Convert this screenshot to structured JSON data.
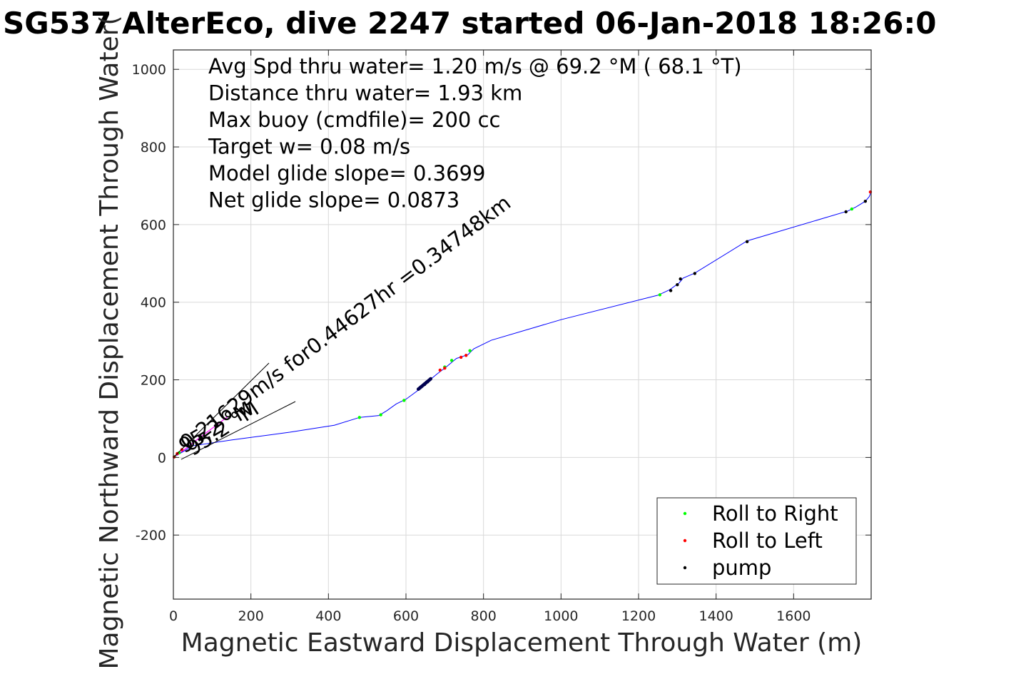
{
  "chart_data": {
    "type": "line",
    "title": "SG537 AlterEco, dive 2247 started 06-Jan-2018 18:26:0",
    "xlabel": "Magnetic Eastward Displacement Through Water (m)",
    "ylabel": "Magnetic Northward Displacement Through Water(",
    "xlim": [
      0,
      1800
    ],
    "ylim": [
      -365,
      1050
    ],
    "xticks": [
      0,
      200,
      400,
      600,
      800,
      1000,
      1200,
      1400,
      1600
    ],
    "yticks": [
      -200,
      0,
      200,
      400,
      600,
      800,
      1000
    ],
    "xtick_labels": [
      "0",
      "200",
      "400",
      "600",
      "800",
      "1000",
      "1200",
      "1400",
      "1600"
    ],
    "ytick_labels": [
      "-200",
      "0",
      "200",
      "400",
      "600",
      "800",
      "1000"
    ],
    "grid": true,
    "series": [
      {
        "name": "",
        "color": "#0000ff",
        "x": [
          0,
          50,
          150,
          300,
          415,
          480,
          530,
          550,
          575,
          600,
          630,
          650,
          680,
          700,
          730,
          760,
          775,
          820,
          1000,
          1250,
          1280,
          1305,
          1315,
          1345,
          1480,
          1740,
          1760,
          1785,
          1795,
          1800
        ],
        "y": [
          0,
          30,
          45,
          65,
          83,
          103,
          108,
          120,
          138,
          150,
          172,
          190,
          215,
          230,
          255,
          265,
          280,
          302,
          355,
          418,
          432,
          450,
          462,
          475,
          558,
          635,
          645,
          660,
          672,
          684
        ]
      }
    ],
    "markers": [
      {
        "name": "Roll to Right",
        "color": "#00ff00",
        "x": [
          3,
          15,
          480,
          535,
          595,
          700,
          718,
          765,
          1255,
          1750
        ],
        "y": [
          2,
          12,
          103,
          110,
          147,
          233,
          250,
          275,
          419,
          640
        ]
      },
      {
        "name": "Roll to Left",
        "color": "#ff0000",
        "x": [
          2,
          10,
          22,
          688,
          700,
          742,
          755,
          1798
        ],
        "y": [
          1,
          10,
          20,
          225,
          230,
          258,
          263,
          684
        ]
      },
      {
        "name": "pump",
        "color": "#000000",
        "x": [
          632,
          640,
          648,
          656,
          664,
          1283,
          1300,
          1308,
          1345,
          1480,
          1735,
          1785
        ],
        "y": [
          176,
          182,
          188,
          195,
          203,
          430,
          445,
          460,
          474,
          556,
          633,
          660
        ]
      }
    ],
    "magenta_line": {
      "color": "#ff00ff",
      "x": [
        0,
        35,
        60,
        100,
        140
      ],
      "y": [
        0,
        25,
        45,
        75,
        105
      ]
    },
    "annotations": [
      "Avg Spd thru water=  1.20 m/s @  69.2 °M ( 68.1 °T)",
      "Distance thru water=  1.93 km",
      "Max buoy (cmdfile)= 200 cc",
      "Target w= 0.08 m/s",
      "Model glide slope= 0.3699",
      "Net glide slope= 0.0873"
    ],
    "wedge_labels": [
      "0.21629m/s for0.44627hr =0.34748km",
      "95.2 °M",
      "95.2 °M"
    ],
    "legend": {
      "position": "bottom-right",
      "entries": [
        "Roll to Right",
        "Roll to Left",
        "pump"
      ]
    }
  }
}
